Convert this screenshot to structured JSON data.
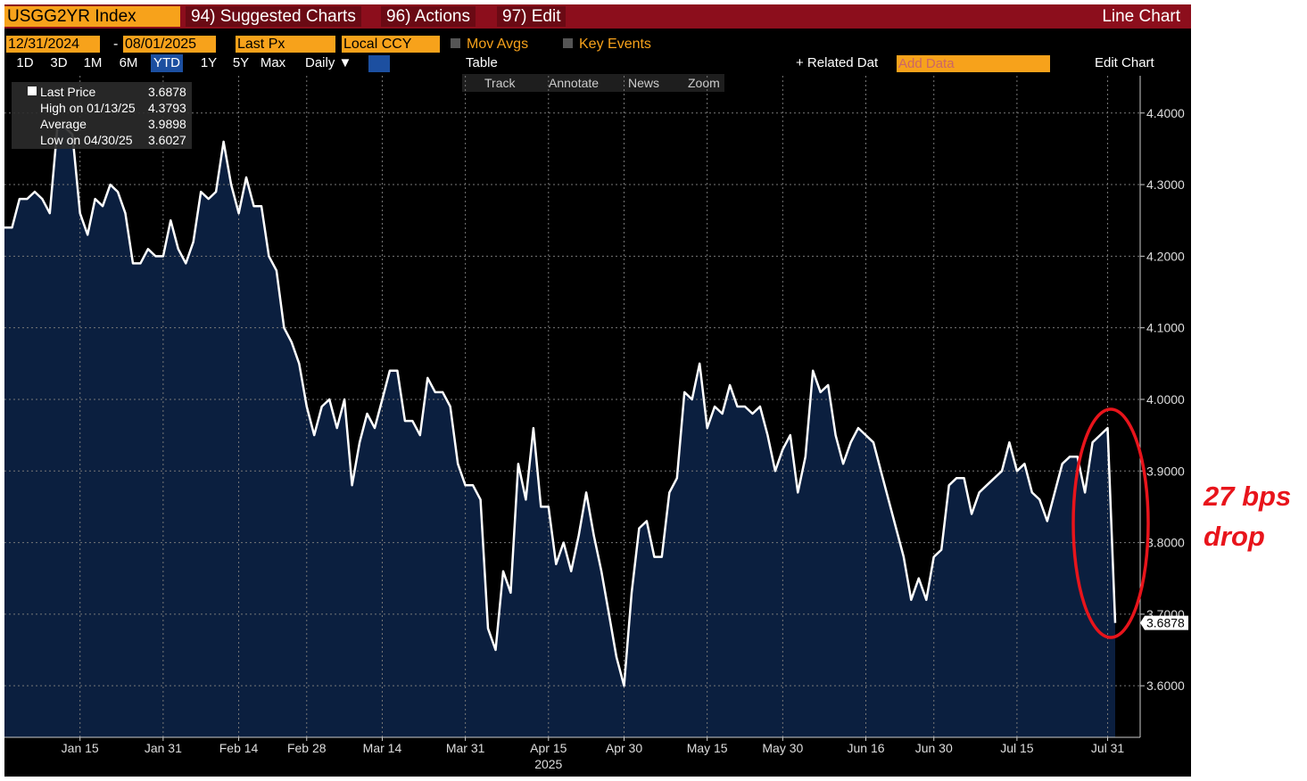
{
  "toolbar": {
    "ticker": "USGG2YR Index",
    "menus": [
      "94) Suggested Charts",
      "96) Actions",
      "97) Edit"
    ],
    "chart_type_label": "Line Chart",
    "start_date": "12/31/2024",
    "end_date": "08/01/2025",
    "field": "Last Px",
    "currency": "Local CCY",
    "mov_avgs": "Mov Avgs",
    "key_events": "Key Events",
    "periods": [
      "1D",
      "3D",
      "1M",
      "6M",
      "YTD",
      "1Y",
      "5Y",
      "Max"
    ],
    "frequency": "Daily ▼",
    "table": "Table",
    "related": "+ Related Dat",
    "add_data": "Add Data",
    "edit_chart": "Edit Chart",
    "tools": [
      "Track",
      "Annotate",
      "News",
      "Zoom"
    ]
  },
  "chart_data": {
    "type": "area",
    "year_label": "2025",
    "categories": [
      null,
      null,
      null,
      null,
      null,
      null,
      null,
      null,
      null,
      null,
      "Jan 15",
      null,
      null,
      null,
      null,
      null,
      null,
      null,
      null,
      null,
      null,
      "Jan 31",
      null,
      null,
      null,
      null,
      null,
      null,
      null,
      null,
      null,
      "Feb 14",
      null,
      null,
      null,
      null,
      null,
      null,
      null,
      null,
      "Feb 28",
      null,
      null,
      null,
      null,
      null,
      null,
      null,
      null,
      null,
      "Mar 14",
      null,
      null,
      null,
      null,
      null,
      null,
      null,
      null,
      null,
      null,
      "Mar 31",
      null,
      null,
      null,
      null,
      null,
      null,
      null,
      null,
      null,
      null,
      "Apr 15",
      null,
      null,
      null,
      null,
      null,
      null,
      null,
      null,
      null,
      "Apr 30",
      null,
      null,
      null,
      null,
      null,
      null,
      null,
      null,
      null,
      null,
      "May 15",
      null,
      null,
      null,
      null,
      null,
      null,
      null,
      null,
      null,
      "May 30",
      null,
      null,
      null,
      null,
      null,
      null,
      null,
      null,
      null,
      null,
      "Jun 16",
      null,
      null,
      null,
      null,
      null,
      null,
      null,
      null,
      "Jun 30",
      null,
      null,
      null,
      null,
      null,
      null,
      null,
      null,
      null,
      null,
      "Jul 15",
      null,
      null,
      null,
      null,
      null,
      null,
      null,
      null,
      null,
      null,
      null,
      "Jul 31",
      null
    ],
    "series": [
      {
        "name": "Last Price",
        "color": "#ffffff",
        "fill": "#0b1f3f",
        "values": [
          4.24,
          4.24,
          4.28,
          4.28,
          4.29,
          4.28,
          4.26,
          4.38,
          4.38,
          4.37,
          4.26,
          4.23,
          4.28,
          4.27,
          4.3,
          4.29,
          4.26,
          4.19,
          4.19,
          4.21,
          4.2,
          4.2,
          4.25,
          4.21,
          4.19,
          4.22,
          4.29,
          4.28,
          4.29,
          4.36,
          4.3,
          4.26,
          4.31,
          4.27,
          4.27,
          4.2,
          4.18,
          4.1,
          4.08,
          4.05,
          3.99,
          3.95,
          3.99,
          4.0,
          3.96,
          4.0,
          3.88,
          3.94,
          3.98,
          3.96,
          4.0,
          4.04,
          4.04,
          3.97,
          3.97,
          3.95,
          4.03,
          4.01,
          4.01,
          3.99,
          3.91,
          3.88,
          3.88,
          3.86,
          3.68,
          3.65,
          3.76,
          3.73,
          3.91,
          3.86,
          3.96,
          3.85,
          3.85,
          3.77,
          3.8,
          3.76,
          3.81,
          3.87,
          3.81,
          3.76,
          3.7,
          3.64,
          3.6,
          3.73,
          3.82,
          3.83,
          3.78,
          3.78,
          3.87,
          3.89,
          4.01,
          4.0,
          4.05,
          3.96,
          3.99,
          3.98,
          4.02,
          3.99,
          3.99,
          3.98,
          3.99,
          3.95,
          3.9,
          3.93,
          3.95,
          3.87,
          3.92,
          4.04,
          4.01,
          4.02,
          3.95,
          3.91,
          3.94,
          3.96,
          3.95,
          3.94,
          3.9,
          3.86,
          3.82,
          3.78,
          3.72,
          3.75,
          3.72,
          3.78,
          3.79,
          3.88,
          3.89,
          3.89,
          3.84,
          3.87,
          3.88,
          3.89,
          3.9,
          3.94,
          3.9,
          3.91,
          3.87,
          3.86,
          3.83,
          3.87,
          3.91,
          3.92,
          3.92,
          3.87,
          3.94,
          3.95,
          3.96,
          3.6878
        ]
      }
    ],
    "stats": [
      {
        "label": "High on 01/13/25",
        "value": "4.3793"
      },
      {
        "label": "Average",
        "value": "3.9898"
      },
      {
        "label": "Low on 04/30/25",
        "value": "3.6027"
      }
    ],
    "ylim": [
      3.528,
      4.452
    ],
    "yticks": [
      {
        "value": 3.6,
        "label": "3.6000"
      },
      {
        "value": 3.7,
        "label": "3.7000"
      },
      {
        "value": 3.8,
        "label": "3.8000"
      },
      {
        "value": 3.9,
        "label": "3.9000"
      },
      {
        "value": 4.0,
        "label": "4.0000"
      },
      {
        "value": 4.1,
        "label": "4.1000"
      },
      {
        "value": 4.2,
        "label": "4.2000"
      },
      {
        "value": 4.3,
        "label": "4.3000"
      },
      {
        "value": 4.4,
        "label": "4.4000"
      }
    ],
    "grid": true,
    "annotation": {
      "lines": [
        "27 bps",
        "drop"
      ],
      "color": "#e8141b"
    }
  }
}
